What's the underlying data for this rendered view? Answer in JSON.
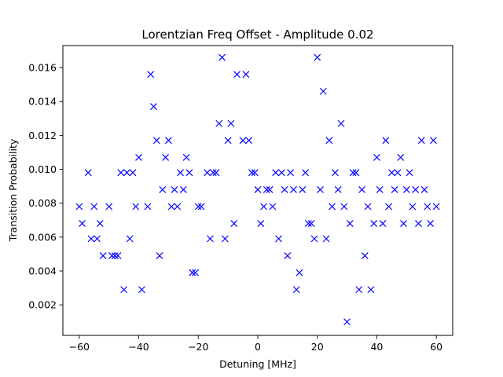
{
  "chart_data": {
    "type": "scatter",
    "title": "Lorentzian Freq Offset - Amplitude 0.02",
    "xlabel": "Detuning [MHz]",
    "ylabel": "Transition Probability",
    "xlim": [
      -65.5,
      65.5
    ],
    "ylim": [
      0.0002,
      0.0173
    ],
    "xticks": [
      -60,
      -40,
      -20,
      0,
      20,
      40,
      60
    ],
    "xtick_labels": [
      "−60",
      "−40",
      "−20",
      "0",
      "20",
      "40",
      "60"
    ],
    "yticks": [
      0.002,
      0.004,
      0.006,
      0.008,
      0.01,
      0.012,
      0.014,
      0.016
    ],
    "ytick_labels": [
      "0.002",
      "0.004",
      "0.006",
      "0.008",
      "0.010",
      "0.012",
      "0.014",
      "0.016"
    ],
    "grid": false,
    "marker": "x",
    "color": "#0000ff",
    "series": [
      {
        "x": [
          -60,
          -59,
          -57,
          -56,
          -55,
          -54,
          -53,
          -52,
          -50,
          -49,
          -48,
          -47,
          -46,
          -45,
          -44,
          -43,
          -42,
          -41,
          -40,
          -39,
          -37,
          -36,
          -35,
          -34,
          -33,
          -32,
          -31,
          -30,
          -29,
          -28,
          -27,
          -26,
          -25,
          -24,
          -23,
          -22,
          -21,
          -20,
          -19,
          -17,
          -16,
          -15,
          -14,
          -13,
          -12,
          -11,
          -10,
          -9,
          -8,
          -7,
          -5,
          -4,
          -3,
          -2,
          -1,
          0,
          1,
          2,
          3,
          4,
          5,
          6,
          7,
          8,
          9,
          10,
          11,
          12,
          13,
          14,
          15,
          16,
          17,
          18,
          19,
          20,
          21,
          22,
          23,
          24,
          25,
          26,
          27,
          28,
          29,
          30,
          31,
          32,
          33,
          34,
          35,
          36,
          37,
          38,
          39,
          40,
          41,
          42,
          43,
          44,
          45,
          46,
          47,
          48,
          49,
          50,
          51,
          52,
          53,
          54,
          55,
          56,
          57,
          58,
          59,
          60
        ],
        "y": [
          0.0078,
          0.0068,
          0.0098,
          0.0059,
          0.0078,
          0.0059,
          0.0068,
          0.0049,
          0.0078,
          0.0049,
          0.0049,
          0.0049,
          0.0098,
          0.0029,
          0.0098,
          0.0059,
          0.0098,
          0.0078,
          0.0107,
          0.0029,
          0.0078,
          0.0156,
          0.0137,
          0.0117,
          0.0049,
          0.0088,
          0.0107,
          0.0117,
          0.0078,
          0.0088,
          0.0078,
          0.0098,
          0.0088,
          0.0107,
          0.0098,
          0.0039,
          0.0039,
          0.0078,
          0.0078,
          0.0098,
          0.0059,
          0.0098,
          0.0098,
          0.0127,
          0.0166,
          0.0059,
          0.0117,
          0.0127,
          0.0068,
          0.0156,
          0.0117,
          0.0156,
          0.0117,
          0.0098,
          0.0098,
          0.0088,
          0.0068,
          0.0078,
          0.0088,
          0.0088,
          0.0078,
          0.0098,
          0.0059,
          0.0098,
          0.0088,
          0.0049,
          0.0098,
          0.0088,
          0.0029,
          0.0039,
          0.0088,
          0.0098,
          0.0068,
          0.0068,
          0.0059,
          0.0166,
          0.0088,
          0.0146,
          0.0059,
          0.0117,
          0.0078,
          0.0098,
          0.0088,
          0.0127,
          0.0078,
          0.001,
          0.0068,
          0.0098,
          0.0098,
          0.0029,
          0.0088,
          0.0049,
          0.0078,
          0.0029,
          0.0068,
          0.0107,
          0.0088,
          0.0068,
          0.0117,
          0.0078,
          0.0098,
          0.0088,
          0.0098,
          0.0107,
          0.0068,
          0.0088,
          0.0098,
          0.0078,
          0.0088,
          0.0068,
          0.0117,
          0.0088,
          0.0078,
          0.0068,
          0.0117,
          0.0078
        ]
      }
    ]
  }
}
